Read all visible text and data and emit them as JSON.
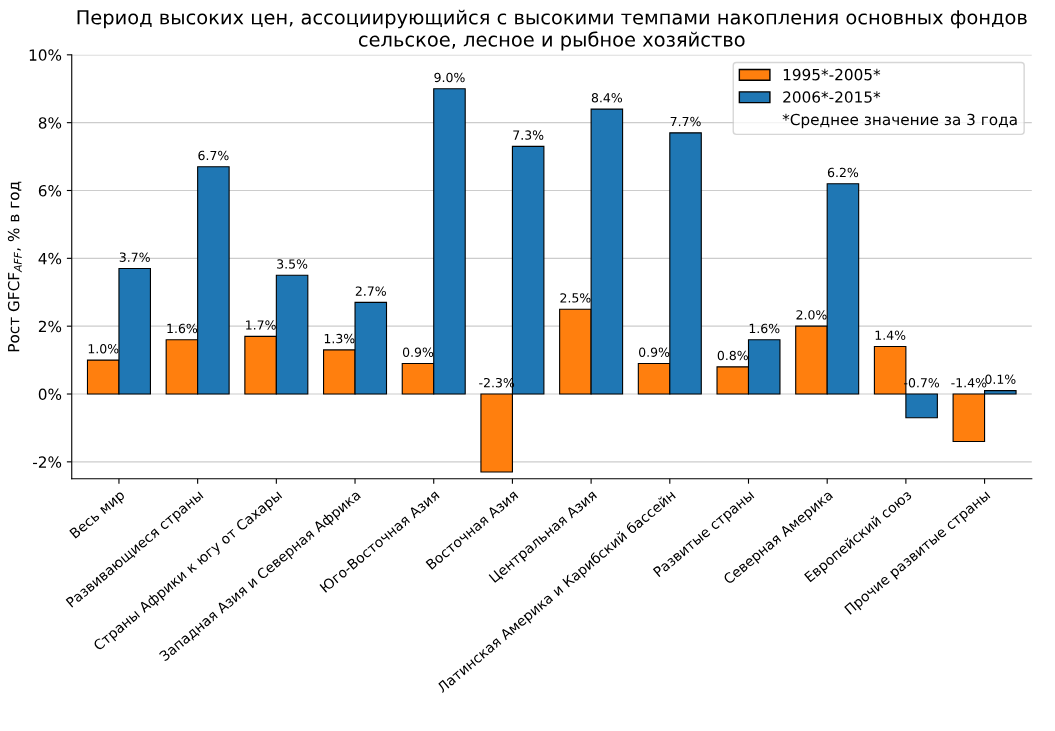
{
  "chart_data": {
    "type": "bar",
    "title": "Период высоких цен, ассоциирующийся с высокими темпами накопления основных фондов\nсельское, лесное и рыбное хозяйство",
    "ylabel": "Рост GFCF$_{AFF}$, % в год",
    "categories": [
      "Весь мир",
      "Развивающиеся страны",
      "Страны Африки к югу от Сахары",
      "Западная Азия и Северная Африка",
      "Юго-Восточная Азия",
      "Восточная Азия",
      "Центральная Азия",
      "Латинская Америка и Карибский бассейн",
      "Развитые страны",
      "Северная Америка",
      "Европейский союз",
      "Прочие развитые страны"
    ],
    "series": [
      {
        "name": "1995*-2005*",
        "color": "#ff7f0e",
        "values": [
          1.0,
          1.6,
          1.7,
          1.3,
          0.9,
          -2.3,
          2.5,
          0.9,
          0.8,
          2.0,
          1.4,
          -1.4
        ],
        "value_labels": [
          "1.0%",
          "1.6%",
          "1.7%",
          "1.3%",
          "0.9%",
          "-2.3%",
          "2.5%",
          "0.9%",
          "0.8%",
          "2.0%",
          "1.4%",
          "-1.4%"
        ]
      },
      {
        "name": "2006*-2015*",
        "color": "#1f77b4",
        "values": [
          3.7,
          6.7,
          3.5,
          2.7,
          9.0,
          7.3,
          8.4,
          7.7,
          1.6,
          6.2,
          -0.7,
          0.1
        ],
        "value_labels": [
          "3.7%",
          "6.7%",
          "3.5%",
          "2.7%",
          "9.0%",
          "7.3%",
          "8.4%",
          "7.7%",
          "1.6%",
          "6.2%",
          "-0.7%",
          "0.1%"
        ]
      }
    ],
    "annotations": [
      "*Среднее значение за 3 года"
    ],
    "ylim": [
      -2.5,
      10
    ],
    "yticks": [
      {
        "value": -2,
        "label": "-2%"
      },
      {
        "value": 0,
        "label": "0%"
      },
      {
        "value": 2,
        "label": "2%"
      },
      {
        "value": 4,
        "label": "4%"
      },
      {
        "value": 6,
        "label": "6%"
      },
      {
        "value": 8,
        "label": "8%"
      },
      {
        "value": 10,
        "label": "10%"
      }
    ],
    "grid": "y",
    "legend": "top right"
  }
}
